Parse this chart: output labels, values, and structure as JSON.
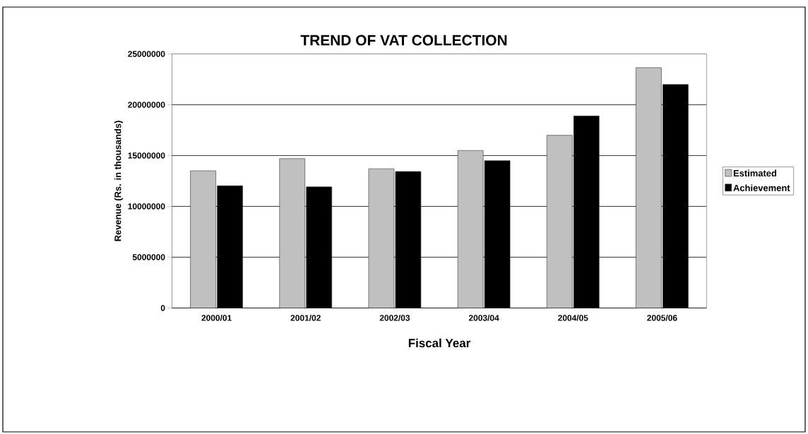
{
  "chart_data": {
    "type": "bar",
    "title": "TREND OF VAT COLLECTION",
    "xlabel": "Fiscal Year",
    "ylabel": "Revenue (Rs. in thousands)",
    "categories": [
      "2000/01",
      "2001/02",
      "2002/03",
      "2003/04",
      "2004/05",
      "2005/06"
    ],
    "series": [
      {
        "name": "Estimated",
        "color": "#c0c0c0",
        "values": [
          13500000,
          14700000,
          13700000,
          15500000,
          17000000,
          23650000
        ]
      },
      {
        "name": "Achievement",
        "color": "#000000",
        "values": [
          12030000,
          11920000,
          13430000,
          14500000,
          18900000,
          22000000
        ]
      }
    ],
    "ylim": [
      0,
      25000000
    ],
    "yticks": [
      0,
      5000000,
      10000000,
      15000000,
      20000000,
      25000000
    ],
    "grid": "y",
    "legend": "right"
  }
}
